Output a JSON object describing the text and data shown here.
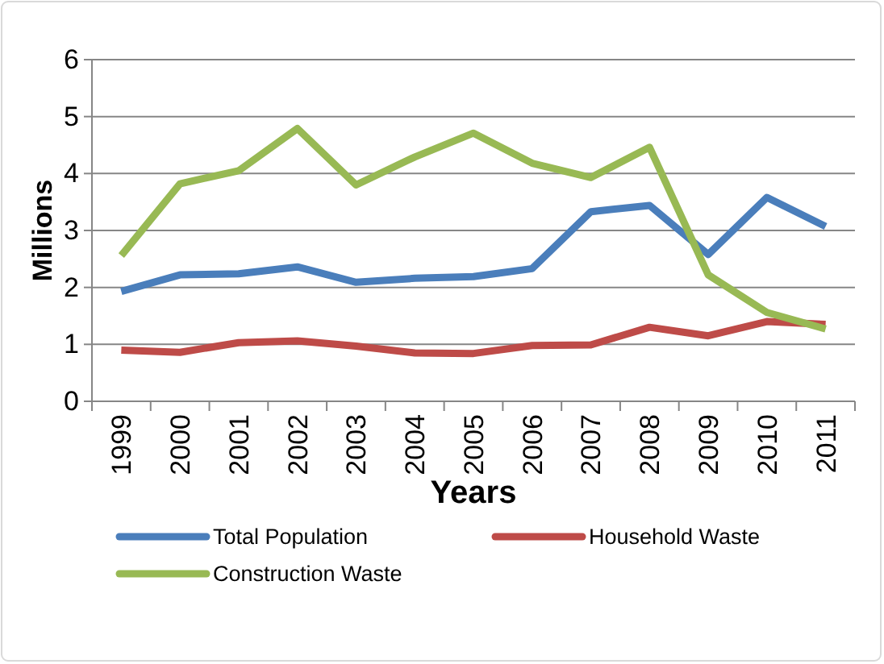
{
  "chart_data": {
    "type": "line",
    "xlabel": "Years",
    "ylabel": "Millions",
    "categories": [
      "1999",
      "2000",
      "2001",
      "2002",
      "2003",
      "2004",
      "2005",
      "2006",
      "2007",
      "2008",
      "2009",
      "2010",
      "2011"
    ],
    "series": [
      {
        "name": "Total Population",
        "color": "#4a7ebb",
        "values": [
          1.93,
          2.22,
          2.24,
          2.36,
          2.09,
          2.16,
          2.19,
          2.33,
          3.33,
          3.44,
          2.58,
          3.58,
          3.07
        ]
      },
      {
        "name": "Household Waste",
        "color": "#be4b48",
        "values": [
          0.9,
          0.86,
          1.03,
          1.06,
          0.97,
          0.85,
          0.84,
          0.98,
          0.99,
          1.3,
          1.15,
          1.4,
          1.35
        ]
      },
      {
        "name": "Construction Waste",
        "color": "#98b954",
        "values": [
          2.56,
          3.82,
          4.05,
          4.79,
          3.8,
          4.29,
          4.71,
          4.18,
          3.93,
          4.46,
          2.22,
          1.56,
          1.27
        ]
      }
    ],
    "ylim": [
      0,
      6
    ],
    "yticks": [
      0,
      1,
      2,
      3,
      4,
      5,
      6
    ],
    "grid": "y",
    "legend": "bottom",
    "marker": "none",
    "line_style": "solid"
  }
}
